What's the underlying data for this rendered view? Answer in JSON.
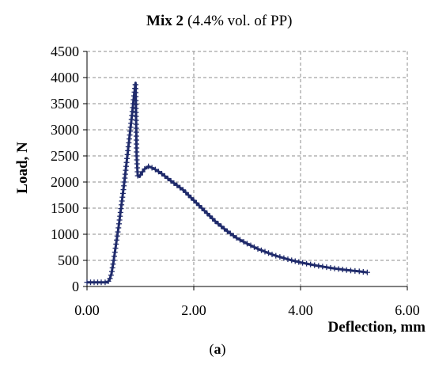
{
  "chart_data": {
    "type": "line",
    "title": "Mix 2",
    "subtitle": "(4.4% vol. of PP)",
    "caption_open": "(",
    "caption_letter": "a",
    "caption_close": ")",
    "xlabel": "Deflection, mm",
    "ylabel": "Load, N",
    "xlim": [
      0,
      6
    ],
    "ylim": [
      0,
      4500
    ],
    "x_ticks": [
      "0.00",
      "2.00",
      "4.00",
      "6.00"
    ],
    "x_tick_values": [
      0,
      2,
      4,
      6
    ],
    "y_ticks": [
      "0",
      "500",
      "1000",
      "1500",
      "2000",
      "2500",
      "3000",
      "3500",
      "4000",
      "4500"
    ],
    "y_tick_values": [
      0,
      500,
      1000,
      1500,
      2000,
      2500,
      3000,
      3500,
      4000,
      4500
    ],
    "grid": true,
    "grid_style": "dashed",
    "marker": "plus",
    "color": "#1f2a6b",
    "series": [
      {
        "x": [
          0.0,
          0.1,
          0.2,
          0.3,
          0.38,
          0.42,
          0.46,
          0.5,
          0.55,
          0.6,
          0.65,
          0.7,
          0.75,
          0.8,
          0.85,
          0.88,
          0.91,
          0.93,
          0.95,
          0.98,
          1.02,
          1.08,
          1.15,
          1.25,
          1.4,
          1.6,
          1.8,
          2.0,
          2.2,
          2.4,
          2.6,
          2.8,
          3.0,
          3.2,
          3.5,
          3.8,
          4.0,
          4.3,
          4.6,
          4.9,
          5.1,
          5.25
        ],
        "y": [
          80,
          80,
          80,
          80,
          80,
          120,
          250,
          500,
          850,
          1200,
          1600,
          2000,
          2450,
          2900,
          3350,
          3650,
          3900,
          2500,
          2120,
          2100,
          2170,
          2250,
          2300,
          2260,
          2160,
          2000,
          1850,
          1650,
          1450,
          1250,
          1080,
          930,
          820,
          720,
          600,
          510,
          460,
          400,
          350,
          310,
          290,
          270
        ]
      }
    ]
  }
}
